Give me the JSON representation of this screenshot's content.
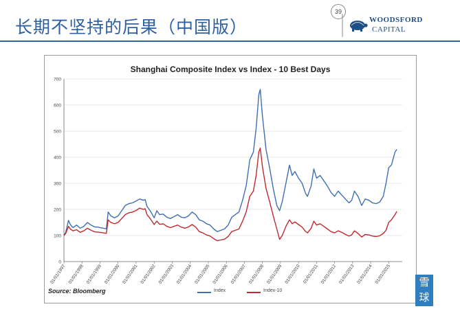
{
  "slide": {
    "title": "长期不坚持的后果（中国版）",
    "page_number": "39"
  },
  "logo": {
    "line1": "WOODSFORD",
    "line2": "CAPITAL"
  },
  "watermark": "雪球",
  "source": "Source: Bloomberg",
  "colors": {
    "index": "#3f6db3",
    "index10": "#c0282d",
    "accent": "#2e5f9e"
  },
  "chart_data": {
    "type": "line",
    "title": "Shanghai Composite Index vs Index - 10 Best Days",
    "ylim": [
      0,
      700
    ],
    "yticks": [
      0,
      100,
      200,
      300,
      400,
      500,
      600,
      700
    ],
    "xlim": [
      1997,
      2015.75
    ],
    "xtick_values": [
      1997,
      1998,
      1999,
      2000,
      2001,
      2002,
      2003,
      2004,
      2005,
      2006,
      2007,
      2008,
      2009,
      2010,
      2011,
      2012,
      2013,
      2014,
      2015
    ],
    "xtick_labels": [
      "01/01/1997",
      "01/01/1998",
      "01/01/1999",
      "01/01/2000",
      "01/01/2001",
      "01/01/2002",
      "01/01/2003",
      "01/01/2004",
      "01/01/2005",
      "01/01/2006",
      "01/01/2007",
      "01/01/2008",
      "01/01/2009",
      "01/01/2010",
      "01/01/2011",
      "01/01/2012",
      "01/01/2013",
      "01/01/2014",
      "01/01/2015"
    ],
    "legend_position": "bottom",
    "series": [
      {
        "name": "Index",
        "points": [
          [
            1997.0,
            100
          ],
          [
            1997.1,
            112
          ],
          [
            1997.25,
            158
          ],
          [
            1997.35,
            142
          ],
          [
            1997.5,
            130
          ],
          [
            1997.7,
            140
          ],
          [
            1997.9,
            128
          ],
          [
            1998.1,
            135
          ],
          [
            1998.3,
            150
          ],
          [
            1998.5,
            140
          ],
          [
            1998.7,
            133
          ],
          [
            1998.9,
            132
          ],
          [
            1999.0,
            130
          ],
          [
            1999.2,
            128
          ],
          [
            1999.35,
            125
          ],
          [
            1999.45,
            190
          ],
          [
            1999.6,
            175
          ],
          [
            1999.8,
            168
          ],
          [
            2000.0,
            175
          ],
          [
            2000.2,
            195
          ],
          [
            2000.4,
            215
          ],
          [
            2000.6,
            222
          ],
          [
            2000.8,
            225
          ],
          [
            2001.0,
            232
          ],
          [
            2001.2,
            240
          ],
          [
            2001.4,
            235
          ],
          [
            2001.5,
            238
          ],
          [
            2001.6,
            212
          ],
          [
            2001.8,
            192
          ],
          [
            2002.0,
            168
          ],
          [
            2002.15,
            195
          ],
          [
            2002.3,
            180
          ],
          [
            2002.5,
            182
          ],
          [
            2002.7,
            170
          ],
          [
            2002.9,
            165
          ],
          [
            2003.1,
            172
          ],
          [
            2003.3,
            180
          ],
          [
            2003.5,
            170
          ],
          [
            2003.7,
            168
          ],
          [
            2003.9,
            175
          ],
          [
            2004.1,
            190
          ],
          [
            2004.3,
            180
          ],
          [
            2004.5,
            160
          ],
          [
            2004.7,
            155
          ],
          [
            2004.9,
            145
          ],
          [
            2005.1,
            140
          ],
          [
            2005.3,
            125
          ],
          [
            2005.5,
            115
          ],
          [
            2005.7,
            120
          ],
          [
            2005.9,
            125
          ],
          [
            2006.1,
            140
          ],
          [
            2006.3,
            170
          ],
          [
            2006.5,
            180
          ],
          [
            2006.7,
            190
          ],
          [
            2006.9,
            235
          ],
          [
            2007.1,
            290
          ],
          [
            2007.3,
            390
          ],
          [
            2007.5,
            420
          ],
          [
            2007.65,
            510
          ],
          [
            2007.8,
            640
          ],
          [
            2007.88,
            660
          ],
          [
            2008.0,
            560
          ],
          [
            2008.2,
            430
          ],
          [
            2008.4,
            360
          ],
          [
            2008.6,
            280
          ],
          [
            2008.8,
            215
          ],
          [
            2008.95,
            195
          ],
          [
            2009.1,
            230
          ],
          [
            2009.3,
            300
          ],
          [
            2009.5,
            370
          ],
          [
            2009.65,
            330
          ],
          [
            2009.8,
            345
          ],
          [
            2010.0,
            320
          ],
          [
            2010.2,
            300
          ],
          [
            2010.4,
            260
          ],
          [
            2010.5,
            250
          ],
          [
            2010.7,
            290
          ],
          [
            2010.85,
            355
          ],
          [
            2011.0,
            320
          ],
          [
            2011.2,
            330
          ],
          [
            2011.4,
            310
          ],
          [
            2011.6,
            290
          ],
          [
            2011.8,
            265
          ],
          [
            2012.0,
            250
          ],
          [
            2012.2,
            270
          ],
          [
            2012.4,
            255
          ],
          [
            2012.6,
            240
          ],
          [
            2012.8,
            225
          ],
          [
            2012.95,
            235
          ],
          [
            2013.1,
            270
          ],
          [
            2013.3,
            250
          ],
          [
            2013.5,
            215
          ],
          [
            2013.7,
            240
          ],
          [
            2013.9,
            235
          ],
          [
            2014.1,
            225
          ],
          [
            2014.3,
            222
          ],
          [
            2014.5,
            228
          ],
          [
            2014.7,
            250
          ],
          [
            2014.85,
            300
          ],
          [
            2015.0,
            360
          ],
          [
            2015.15,
            370
          ],
          [
            2015.35,
            420
          ],
          [
            2015.45,
            430
          ]
        ]
      },
      {
        "name": "Index-10",
        "points": [
          [
            1997.0,
            100
          ],
          [
            1997.1,
            108
          ],
          [
            1997.25,
            135
          ],
          [
            1997.35,
            125
          ],
          [
            1997.5,
            118
          ],
          [
            1997.7,
            122
          ],
          [
            1997.9,
            112
          ],
          [
            1998.1,
            118
          ],
          [
            1998.3,
            128
          ],
          [
            1998.5,
            120
          ],
          [
            1998.7,
            114
          ],
          [
            1998.9,
            113
          ],
          [
            1999.0,
            112
          ],
          [
            1999.2,
            110
          ],
          [
            1999.35,
            108
          ],
          [
            1999.45,
            160
          ],
          [
            1999.6,
            150
          ],
          [
            1999.8,
            145
          ],
          [
            2000.0,
            150
          ],
          [
            2000.2,
            165
          ],
          [
            2000.4,
            180
          ],
          [
            2000.6,
            187
          ],
          [
            2000.8,
            190
          ],
          [
            2001.0,
            196
          ],
          [
            2001.2,
            205
          ],
          [
            2001.4,
            200
          ],
          [
            2001.5,
            203
          ],
          [
            2001.6,
            180
          ],
          [
            2001.8,
            163
          ],
          [
            2002.0,
            142
          ],
          [
            2002.15,
            155
          ],
          [
            2002.3,
            143
          ],
          [
            2002.5,
            145
          ],
          [
            2002.7,
            135
          ],
          [
            2002.9,
            130
          ],
          [
            2003.1,
            135
          ],
          [
            2003.3,
            140
          ],
          [
            2003.5,
            132
          ],
          [
            2003.7,
            128
          ],
          [
            2003.9,
            133
          ],
          [
            2004.1,
            142
          ],
          [
            2004.3,
            132
          ],
          [
            2004.5,
            115
          ],
          [
            2004.7,
            110
          ],
          [
            2004.9,
            102
          ],
          [
            2005.1,
            98
          ],
          [
            2005.3,
            88
          ],
          [
            2005.5,
            80
          ],
          [
            2005.7,
            83
          ],
          [
            2005.9,
            86
          ],
          [
            2006.1,
            96
          ],
          [
            2006.3,
            115
          ],
          [
            2006.5,
            120
          ],
          [
            2006.7,
            125
          ],
          [
            2006.9,
            155
          ],
          [
            2007.1,
            190
          ],
          [
            2007.3,
            250
          ],
          [
            2007.5,
            270
          ],
          [
            2007.65,
            330
          ],
          [
            2007.8,
            420
          ],
          [
            2007.88,
            435
          ],
          [
            2008.0,
            365
          ],
          [
            2008.2,
            280
          ],
          [
            2008.4,
            230
          ],
          [
            2008.6,
            175
          ],
          [
            2008.8,
            125
          ],
          [
            2008.95,
            85
          ],
          [
            2009.1,
            100
          ],
          [
            2009.3,
            135
          ],
          [
            2009.5,
            160
          ],
          [
            2009.65,
            145
          ],
          [
            2009.8,
            152
          ],
          [
            2010.0,
            142
          ],
          [
            2010.2,
            132
          ],
          [
            2010.4,
            115
          ],
          [
            2010.5,
            110
          ],
          [
            2010.7,
            128
          ],
          [
            2010.85,
            155
          ],
          [
            2011.0,
            140
          ],
          [
            2011.2,
            145
          ],
          [
            2011.4,
            135
          ],
          [
            2011.6,
            125
          ],
          [
            2011.8,
            115
          ],
          [
            2012.0,
            110
          ],
          [
            2012.2,
            118
          ],
          [
            2012.4,
            112
          ],
          [
            2012.6,
            104
          ],
          [
            2012.8,
            98
          ],
          [
            2012.95,
            102
          ],
          [
            2013.1,
            118
          ],
          [
            2013.3,
            108
          ],
          [
            2013.5,
            94
          ],
          [
            2013.7,
            104
          ],
          [
            2013.9,
            102
          ],
          [
            2014.1,
            98
          ],
          [
            2014.3,
            96
          ],
          [
            2014.5,
            99
          ],
          [
            2014.7,
            108
          ],
          [
            2014.85,
            120
          ],
          [
            2015.0,
            150
          ],
          [
            2015.15,
            160
          ],
          [
            2015.35,
            180
          ],
          [
            2015.45,
            192
          ]
        ]
      }
    ]
  }
}
